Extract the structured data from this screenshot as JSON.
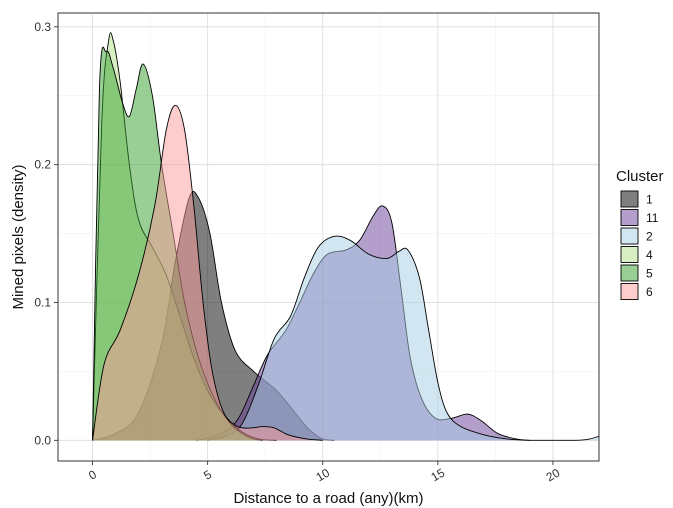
{
  "chart_data": {
    "type": "area",
    "subtype": "density",
    "title": "",
    "xlabel": "Distance to a road (any)(km)",
    "ylabel": "Mined pixels (density)",
    "xlim": [
      -1.5,
      22
    ],
    "ylim": [
      -0.015,
      0.31
    ],
    "x_ticks": [
      0,
      5,
      10,
      15,
      20
    ],
    "y_ticks": [
      0.0,
      0.1,
      0.2,
      0.3
    ],
    "x_tick_labels": [
      "0",
      "5",
      "10",
      "15",
      "20"
    ],
    "y_tick_labels": [
      "0.0",
      "0.1",
      "0.2",
      "0.3"
    ],
    "grid": true,
    "legend": {
      "title": "Cluster",
      "position": "right"
    },
    "series": [
      {
        "name": "1",
        "color": "#000000",
        "points": [
          [
            0,
            0
          ],
          [
            1,
            0.005
          ],
          [
            2,
            0.02
          ],
          [
            3,
            0.07
          ],
          [
            3.6,
            0.13
          ],
          [
            4.2,
            0.176
          ],
          [
            4.6,
            0.176
          ],
          [
            5.1,
            0.15
          ],
          [
            5.6,
            0.1
          ],
          [
            6.2,
            0.065
          ],
          [
            7.0,
            0.05
          ],
          [
            8.0,
            0.036
          ],
          [
            8.8,
            0.02
          ],
          [
            9.4,
            0.008
          ],
          [
            10.0,
            0.001
          ],
          [
            10.5,
            0
          ]
        ]
      },
      {
        "name": "11",
        "color": "#6A3D9A",
        "points": [
          [
            4.5,
            0
          ],
          [
            5.5,
            0.004
          ],
          [
            6.3,
            0.015
          ],
          [
            7.0,
            0.04
          ],
          [
            7.6,
            0.062
          ],
          [
            8.4,
            0.08
          ],
          [
            9.0,
            0.1
          ],
          [
            9.6,
            0.121
          ],
          [
            10.2,
            0.135
          ],
          [
            11.0,
            0.138
          ],
          [
            11.6,
            0.145
          ],
          [
            12.2,
            0.163
          ],
          [
            12.6,
            0.17
          ],
          [
            13.0,
            0.158
          ],
          [
            13.4,
            0.11
          ],
          [
            13.8,
            0.06
          ],
          [
            14.3,
            0.03
          ],
          [
            14.9,
            0.016
          ],
          [
            15.6,
            0.016
          ],
          [
            16.3,
            0.019
          ],
          [
            16.9,
            0.014
          ],
          [
            17.6,
            0.005
          ],
          [
            18.4,
            0.001
          ],
          [
            19.0,
            0
          ]
        ]
      },
      {
        "name": "2",
        "color": "#A6CEE3",
        "points": [
          [
            5.0,
            0
          ],
          [
            5.8,
            0.003
          ],
          [
            6.5,
            0.012
          ],
          [
            7.2,
            0.04
          ],
          [
            7.9,
            0.074
          ],
          [
            8.6,
            0.09
          ],
          [
            9.2,
            0.118
          ],
          [
            9.8,
            0.14
          ],
          [
            10.5,
            0.148
          ],
          [
            11.2,
            0.145
          ],
          [
            12.0,
            0.135
          ],
          [
            12.8,
            0.132
          ],
          [
            13.3,
            0.137
          ],
          [
            13.7,
            0.138
          ],
          [
            14.2,
            0.118
          ],
          [
            14.6,
            0.08
          ],
          [
            15.0,
            0.042
          ],
          [
            15.4,
            0.02
          ],
          [
            16.0,
            0.01
          ],
          [
            17.0,
            0.004
          ],
          [
            18.0,
            0.001
          ],
          [
            19.0,
            0
          ],
          [
            21.0,
            0
          ],
          [
            21.6,
            0.001
          ],
          [
            22,
            0.003
          ]
        ]
      },
      {
        "name": "4",
        "color": "#B2DF8A",
        "points": [
          [
            0,
            0
          ],
          [
            0.4,
            0.23
          ],
          [
            0.7,
            0.29
          ],
          [
            0.9,
            0.29
          ],
          [
            1.2,
            0.26
          ],
          [
            1.6,
            0.2
          ],
          [
            2.0,
            0.16
          ],
          [
            2.6,
            0.14
          ],
          [
            3.2,
            0.12
          ],
          [
            3.8,
            0.09
          ],
          [
            4.5,
            0.055
          ],
          [
            5.2,
            0.03
          ],
          [
            5.9,
            0.015
          ],
          [
            6.5,
            0.006
          ],
          [
            7.2,
            0.001
          ],
          [
            8,
            0
          ]
        ]
      },
      {
        "name": "5",
        "color": "#33A02C",
        "points": [
          [
            0,
            0
          ],
          [
            0.3,
            0.255
          ],
          [
            0.6,
            0.282
          ],
          [
            0.9,
            0.27
          ],
          [
            1.3,
            0.245
          ],
          [
            1.6,
            0.235
          ],
          [
            1.9,
            0.255
          ],
          [
            2.2,
            0.273
          ],
          [
            2.6,
            0.25
          ],
          [
            3.0,
            0.2
          ],
          [
            3.5,
            0.15
          ],
          [
            4.0,
            0.1
          ],
          [
            4.6,
            0.06
          ],
          [
            5.3,
            0.03
          ],
          [
            6.0,
            0.012
          ],
          [
            6.6,
            0.004
          ],
          [
            7.0,
            0.001
          ],
          [
            7.4,
            0
          ]
        ]
      },
      {
        "name": "6",
        "color": "#FB9A99",
        "points": [
          [
            0,
            0
          ],
          [
            0.5,
            0.055
          ],
          [
            1.2,
            0.08
          ],
          [
            2.0,
            0.12
          ],
          [
            2.7,
            0.17
          ],
          [
            3.2,
            0.225
          ],
          [
            3.6,
            0.243
          ],
          [
            4.0,
            0.225
          ],
          [
            4.4,
            0.17
          ],
          [
            4.8,
            0.1
          ],
          [
            5.2,
            0.05
          ],
          [
            5.7,
            0.02
          ],
          [
            6.3,
            0.01
          ],
          [
            6.9,
            0.009
          ],
          [
            7.4,
            0.01
          ],
          [
            7.9,
            0.009
          ],
          [
            8.5,
            0.004
          ],
          [
            9.3,
            0.001
          ],
          [
            10.0,
            0
          ]
        ]
      }
    ]
  }
}
